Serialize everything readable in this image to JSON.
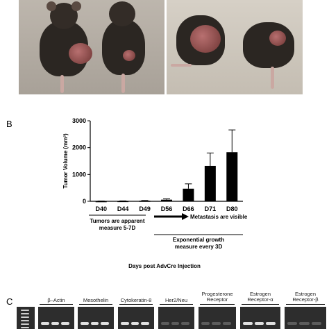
{
  "panel_labels": {
    "b": "B",
    "c": "C"
  },
  "chart_data": {
    "type": "bar",
    "categories": [
      "D40",
      "D44",
      "D49",
      "D56",
      "D66",
      "D71",
      "D80"
    ],
    "values": [
      5,
      10,
      20,
      60,
      470,
      1320,
      1830
    ],
    "errors": [
      5,
      5,
      10,
      30,
      180,
      480,
      830
    ],
    "ylabel": "Tumor Volume (mm³)",
    "ylim": [
      0,
      3000
    ],
    "yticks": [
      0,
      1000,
      2000,
      3000
    ],
    "xlabel": "Days post AdvCre Injection",
    "annotations": {
      "left_line1": "Tumors are apparent",
      "left_line2": "measure 5-7D",
      "arrow_text": "Metastasis are visible",
      "right_line1": "Exponential growth",
      "right_line2": "measure every 3D"
    },
    "colors": {
      "bar": "#000000"
    }
  },
  "gel_labels": [
    "β–Actin",
    "Mesothelin",
    "Cytokeratin-8",
    "Her2/Neu",
    "Progesterone\nReceptor",
    "Estrogen\nReceptor-α",
    "Estrogen\nReceptor-β"
  ]
}
